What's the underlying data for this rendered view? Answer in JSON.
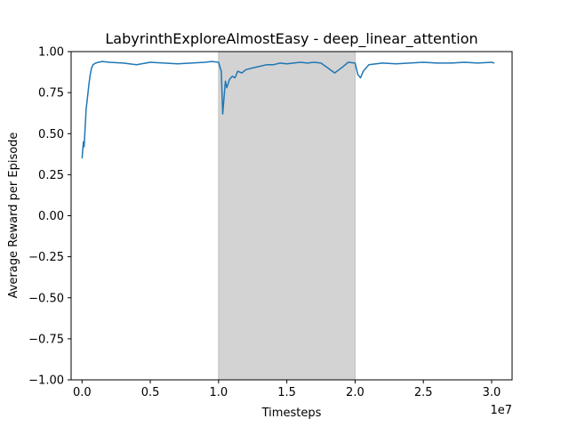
{
  "chart_data": {
    "type": "line",
    "title": "LabyrinthExploreAlmostEasy - deep_linear_attention",
    "xlabel": "Timesteps",
    "ylabel": "Average Reward per Episode",
    "x_offset_label": "1e7",
    "xlim": [
      -0.08,
      3.15
    ],
    "ylim": [
      -1.0,
      1.0
    ],
    "xticks": [
      0.0,
      0.5,
      1.0,
      1.5,
      2.0,
      2.5,
      3.0
    ],
    "xtick_labels": [
      "0.0",
      "0.5",
      "1.0",
      "1.5",
      "2.0",
      "2.5",
      "3.0"
    ],
    "yticks": [
      -1.0,
      -0.75,
      -0.5,
      -0.25,
      0.0,
      0.25,
      0.5,
      0.75,
      1.0
    ],
    "ytick_labels": [
      "−1.00",
      "−0.75",
      "−0.50",
      "−0.25",
      "0.00",
      "0.25",
      "0.50",
      "0.75",
      "1.00"
    ],
    "grid": false,
    "shaded_region": {
      "x_start": 1.0,
      "x_end": 2.0,
      "color": "#d3d3d3"
    },
    "series": [
      {
        "color": "#1f77b4",
        "x": [
          0.0,
          0.01,
          0.015,
          0.02,
          0.03,
          0.04,
          0.05,
          0.06,
          0.07,
          0.08,
          0.1,
          0.12,
          0.15,
          0.2,
          0.3,
          0.4,
          0.5,
          0.6,
          0.7,
          0.8,
          0.9,
          0.95,
          1.0,
          1.02,
          1.03,
          1.05,
          1.06,
          1.08,
          1.1,
          1.12,
          1.14,
          1.17,
          1.2,
          1.25,
          1.3,
          1.35,
          1.4,
          1.45,
          1.5,
          1.55,
          1.6,
          1.65,
          1.7,
          1.75,
          1.8,
          1.85,
          1.9,
          1.95,
          2.0,
          2.02,
          2.04,
          2.06,
          2.1,
          2.2,
          2.3,
          2.4,
          2.5,
          2.6,
          2.7,
          2.8,
          2.9,
          3.0,
          3.02
        ],
        "y": [
          0.35,
          0.45,
          0.42,
          0.5,
          0.65,
          0.72,
          0.8,
          0.86,
          0.9,
          0.92,
          0.93,
          0.935,
          0.94,
          0.935,
          0.93,
          0.92,
          0.935,
          0.93,
          0.925,
          0.93,
          0.935,
          0.94,
          0.935,
          0.88,
          0.62,
          0.82,
          0.78,
          0.83,
          0.85,
          0.84,
          0.88,
          0.87,
          0.89,
          0.9,
          0.91,
          0.92,
          0.92,
          0.93,
          0.925,
          0.93,
          0.935,
          0.93,
          0.935,
          0.93,
          0.9,
          0.87,
          0.9,
          0.935,
          0.93,
          0.86,
          0.84,
          0.88,
          0.92,
          0.93,
          0.925,
          0.93,
          0.935,
          0.93,
          0.93,
          0.935,
          0.93,
          0.935,
          0.93
        ]
      }
    ]
  }
}
